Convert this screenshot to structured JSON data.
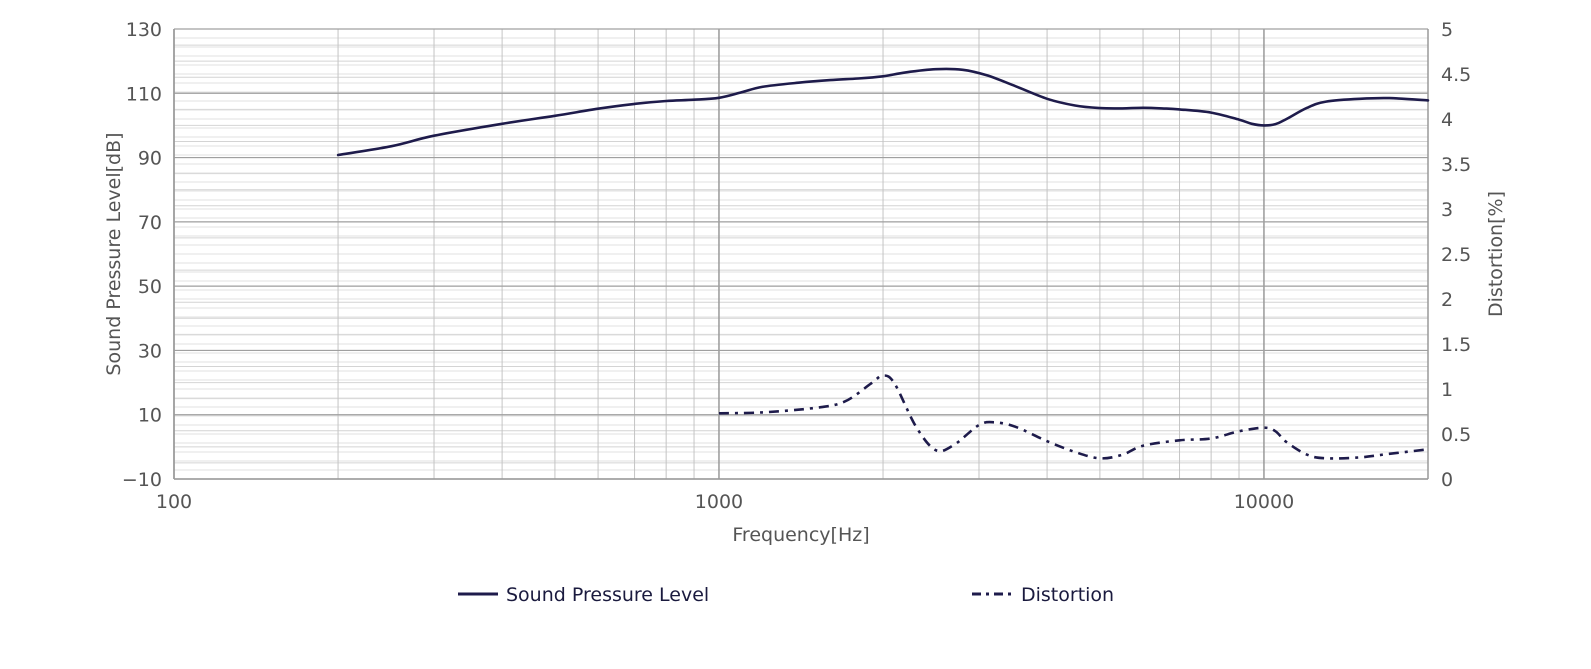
{
  "chart_data": {
    "type": "line",
    "xlabel": "Frequency[Hz]",
    "ylabel": "Sound Pressure Level[dB]",
    "y2label": "Distortion[%]",
    "xscale": "log",
    "xlim": [
      100,
      20000
    ],
    "ylim": [
      -10,
      130
    ],
    "y2lim": [
      0,
      5
    ],
    "x_ticks": [
      100,
      1000,
      10000
    ],
    "x_tick_labels": [
      "100",
      "1000",
      "10000"
    ],
    "y_ticks": [
      -10,
      10,
      30,
      50,
      70,
      90,
      110,
      130
    ],
    "y_tick_labels": [
      "−10",
      "10",
      "30",
      "50",
      "70",
      "90",
      "110",
      "130"
    ],
    "y2_ticks": [
      0,
      0.5,
      1,
      1.5,
      2,
      2.5,
      3,
      3.5,
      4,
      4.5,
      5
    ],
    "y2_tick_labels": [
      "0",
      "0.5",
      "1",
      "1.5",
      "2",
      "2.5",
      "3",
      "3.5",
      "4",
      "4.5",
      "5"
    ],
    "grid": true,
    "legend_position": "bottom",
    "line_color": "#1e1b4b",
    "series": [
      {
        "name": "Sound Pressure Level",
        "axis": "left",
        "style": "solid",
        "x": [
          200,
          250,
          300,
          400,
          500,
          600,
          700,
          800,
          900,
          1000,
          1100,
          1200,
          1400,
          1600,
          1800,
          2000,
          2200,
          2500,
          2800,
          3100,
          3500,
          4000,
          4500,
          5000,
          5500,
          6000,
          6500,
          7000,
          8000,
          9000,
          9500,
          10000,
          10500,
          11000,
          12000,
          13000,
          15000,
          17000,
          20000
        ],
        "values": [
          90.8,
          93.5,
          96.8,
          100.5,
          103,
          105.2,
          106.7,
          107.6,
          108,
          108.6,
          110.3,
          112,
          113.3,
          114.1,
          114.6,
          115.3,
          116.5,
          117.5,
          117.3,
          115.6,
          112.2,
          108.3,
          106.2,
          105.4,
          105.3,
          105.5,
          105.3,
          105,
          104,
          101.8,
          100.5,
          100,
          100.4,
          102,
          105.5,
          107.4,
          108.3,
          108.5,
          107.8
        ]
      },
      {
        "name": "Distortion",
        "axis": "right",
        "style": "dash-dot",
        "x": [
          1000,
          1200,
          1500,
          1700,
          1900,
          2000,
          2100,
          2300,
          2500,
          2700,
          3000,
          3200,
          3500,
          4000,
          4500,
          5000,
          5500,
          6000,
          7000,
          8000,
          9000,
          10000,
          10500,
          11000,
          12000,
          13000,
          15000,
          17000,
          20000
        ],
        "values": [
          0.73,
          0.74,
          0.79,
          0.86,
          1.06,
          1.15,
          1.06,
          0.58,
          0.32,
          0.38,
          0.6,
          0.63,
          0.58,
          0.42,
          0.3,
          0.23,
          0.27,
          0.37,
          0.43,
          0.45,
          0.53,
          0.57,
          0.53,
          0.41,
          0.27,
          0.23,
          0.24,
          0.28,
          0.33
        ]
      }
    ]
  }
}
